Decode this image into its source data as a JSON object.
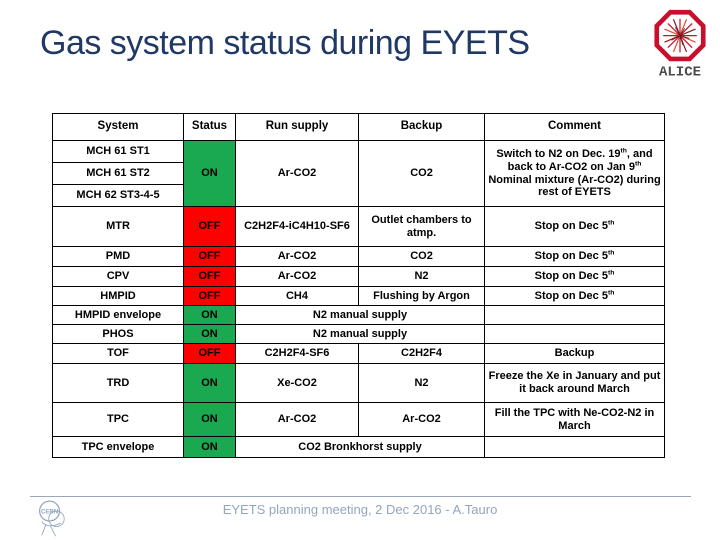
{
  "slide": {
    "title": "Gas system status during EYETS",
    "footer": "EYETS planning meeting, 2 Dec 2016 - A.Tauro"
  },
  "logos": {
    "alice_label": "ALICE",
    "cern_label": "CERN"
  },
  "colors": {
    "status_on_green": "#1AA850",
    "status_off_red": "#FF0000",
    "title_text": "#1F3864",
    "footer_text": "#93A5BE",
    "alice_red": "#C8102E"
  },
  "table": {
    "headers": [
      "System",
      "Status",
      "Run supply",
      "Backup",
      "Comment"
    ],
    "mch_group": {
      "systems": [
        "MCH 61 ST1",
        "MCH 61 ST2",
        "MCH 62 ST3-4-5"
      ],
      "status": "ON",
      "run_supply": "Ar-CO2",
      "backup": "CO2",
      "comment": "Switch to N2 on Dec. 19th, and back to Ar-CO2 on Jan 9th\nNominal mixture (Ar-CO2) during rest of EYETS"
    },
    "rows": [
      {
        "system": "MTR",
        "status": "OFF",
        "run_supply": "C2H2F4-iC4H10-SF6",
        "backup": "Outlet chambers to atmp.",
        "comment": "Stop on Dec 5th"
      },
      {
        "system": "PMD",
        "status": "OFF",
        "run_supply": "Ar-CO2",
        "backup": "CO2",
        "comment": "Stop on Dec 5th"
      },
      {
        "system": "CPV",
        "status": "OFF",
        "run_supply": "Ar-CO2",
        "backup": "N2",
        "comment": "Stop on Dec 5th"
      },
      {
        "system": "HMPID",
        "status": "OFF",
        "run_supply": "CH4",
        "backup": "Flushing by Argon",
        "comment": "Stop on Dec 5th"
      },
      {
        "system": "HMPID envelope",
        "status": "ON",
        "supply_merged": "N2 manual supply",
        "comment": ""
      },
      {
        "system": "PHOS",
        "status": "ON",
        "supply_merged": "N2 manual supply",
        "comment": ""
      },
      {
        "system": "TOF",
        "status": "OFF",
        "run_supply": "C2H2F4-SF6",
        "backup": "C2H2F4",
        "comment": "Backup"
      },
      {
        "system": "TRD",
        "status": "ON",
        "run_supply": "Xe-CO2",
        "backup": "N2",
        "comment": "Freeze the Xe in January and put it back around March"
      },
      {
        "system": "TPC",
        "status": "ON",
        "run_supply": "Ar-CO2",
        "backup": "Ar-CO2",
        "comment": "Fill the TPC with Ne-CO2-N2 in March"
      },
      {
        "system": "TPC envelope",
        "status": "ON",
        "supply_merged": "CO2 Bronkhorst supply",
        "comment": ""
      }
    ]
  }
}
